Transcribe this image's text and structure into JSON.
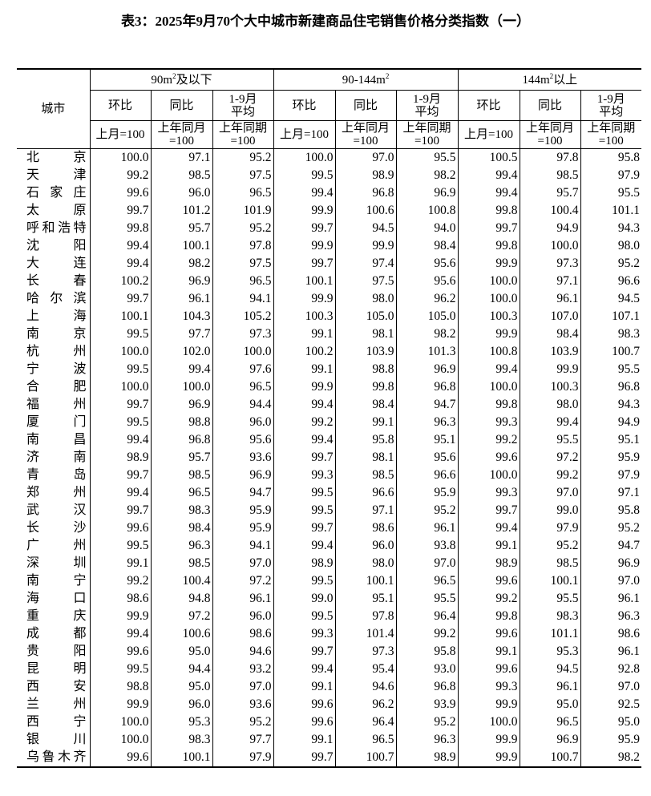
{
  "title": "表3：2025年9月70个大中城市新建商品住宅销售价格分类指数（一）",
  "header": {
    "city": "城市",
    "groups": [
      {
        "base": "90m",
        "sup": "2",
        "suffix": "及以下"
      },
      {
        "base": "90-144m",
        "sup": "2",
        "suffix": ""
      },
      {
        "base": "144m",
        "sup": "2",
        "suffix": "以上"
      }
    ],
    "metrics": [
      {
        "line1": "环比",
        "line2": "",
        "base1": "上月=100",
        "base2": ""
      },
      {
        "line1": "同比",
        "line2": "",
        "base1": "上年同月",
        "base2": "=100"
      },
      {
        "line1": "1-9月",
        "line2": "平均",
        "base1": "上年同期",
        "base2": "=100"
      }
    ]
  },
  "rows": [
    {
      "city": "北京",
      "v": [
        "100.0",
        "97.1",
        "95.2",
        "100.0",
        "97.0",
        "95.5",
        "100.5",
        "97.8",
        "95.8"
      ]
    },
    {
      "city": "天津",
      "v": [
        "99.2",
        "98.5",
        "97.5",
        "99.5",
        "98.9",
        "98.2",
        "99.4",
        "98.5",
        "97.9"
      ]
    },
    {
      "city": "石家庄",
      "v": [
        "99.6",
        "96.0",
        "96.5",
        "99.4",
        "96.8",
        "96.9",
        "99.4",
        "95.7",
        "95.5"
      ]
    },
    {
      "city": "太原",
      "v": [
        "99.7",
        "101.2",
        "101.9",
        "99.9",
        "100.6",
        "100.8",
        "99.8",
        "100.4",
        "101.1"
      ]
    },
    {
      "city": "呼和浩特",
      "v": [
        "99.8",
        "95.7",
        "95.2",
        "99.7",
        "94.5",
        "94.0",
        "99.7",
        "94.9",
        "94.3"
      ]
    },
    {
      "city": "沈阳",
      "v": [
        "99.4",
        "100.1",
        "97.8",
        "99.9",
        "99.9",
        "98.4",
        "99.8",
        "100.0",
        "98.0"
      ]
    },
    {
      "city": "大连",
      "v": [
        "99.4",
        "98.2",
        "97.5",
        "99.7",
        "97.4",
        "95.6",
        "99.9",
        "97.3",
        "95.2"
      ]
    },
    {
      "city": "长春",
      "v": [
        "100.2",
        "96.9",
        "96.5",
        "100.1",
        "97.5",
        "95.6",
        "100.0",
        "97.1",
        "96.6"
      ]
    },
    {
      "city": "哈尔滨",
      "v": [
        "99.7",
        "96.1",
        "94.1",
        "99.9",
        "98.0",
        "96.2",
        "100.0",
        "96.1",
        "94.5"
      ]
    },
    {
      "city": "上海",
      "v": [
        "100.1",
        "104.3",
        "105.2",
        "100.3",
        "105.0",
        "105.0",
        "100.3",
        "107.0",
        "107.1"
      ]
    },
    {
      "city": "南京",
      "v": [
        "99.5",
        "97.7",
        "97.3",
        "99.1",
        "98.1",
        "98.2",
        "99.9",
        "98.4",
        "98.3"
      ]
    },
    {
      "city": "杭州",
      "v": [
        "100.0",
        "102.0",
        "100.0",
        "100.2",
        "103.9",
        "101.3",
        "100.8",
        "103.9",
        "100.7"
      ]
    },
    {
      "city": "宁波",
      "v": [
        "99.5",
        "99.4",
        "97.6",
        "99.1",
        "98.8",
        "96.9",
        "99.4",
        "99.9",
        "95.5"
      ]
    },
    {
      "city": "合肥",
      "v": [
        "100.0",
        "100.0",
        "96.5",
        "99.9",
        "99.8",
        "96.8",
        "100.0",
        "100.3",
        "96.8"
      ]
    },
    {
      "city": "福州",
      "v": [
        "99.7",
        "96.9",
        "94.4",
        "99.4",
        "98.4",
        "94.7",
        "99.8",
        "98.0",
        "94.3"
      ]
    },
    {
      "city": "厦门",
      "v": [
        "99.5",
        "98.8",
        "96.0",
        "99.2",
        "99.1",
        "96.3",
        "99.3",
        "99.4",
        "94.9"
      ]
    },
    {
      "city": "南昌",
      "v": [
        "99.4",
        "96.8",
        "95.6",
        "99.4",
        "95.8",
        "95.1",
        "99.2",
        "95.5",
        "95.1"
      ]
    },
    {
      "city": "济南",
      "v": [
        "98.9",
        "95.7",
        "93.6",
        "99.7",
        "98.1",
        "95.6",
        "99.6",
        "97.2",
        "95.9"
      ]
    },
    {
      "city": "青岛",
      "v": [
        "99.7",
        "98.5",
        "96.9",
        "99.3",
        "98.5",
        "96.6",
        "100.0",
        "99.2",
        "97.9"
      ]
    },
    {
      "city": "郑州",
      "v": [
        "99.4",
        "96.5",
        "94.7",
        "99.5",
        "96.6",
        "95.9",
        "99.3",
        "97.0",
        "97.1"
      ]
    },
    {
      "city": "武汉",
      "v": [
        "99.7",
        "98.3",
        "95.9",
        "99.5",
        "97.1",
        "95.2",
        "99.7",
        "99.0",
        "95.8"
      ]
    },
    {
      "city": "长沙",
      "v": [
        "99.6",
        "98.4",
        "95.9",
        "99.7",
        "98.6",
        "96.1",
        "99.4",
        "97.9",
        "95.2"
      ]
    },
    {
      "city": "广州",
      "v": [
        "99.5",
        "96.3",
        "94.1",
        "99.4",
        "96.0",
        "93.8",
        "99.1",
        "95.2",
        "94.7"
      ]
    },
    {
      "city": "深圳",
      "v": [
        "99.1",
        "98.5",
        "97.0",
        "98.9",
        "98.0",
        "97.0",
        "98.9",
        "98.5",
        "96.9"
      ]
    },
    {
      "city": "南宁",
      "v": [
        "99.2",
        "100.4",
        "97.2",
        "99.5",
        "100.1",
        "96.5",
        "99.6",
        "100.1",
        "97.0"
      ]
    },
    {
      "city": "海口",
      "v": [
        "98.6",
        "94.8",
        "96.1",
        "99.0",
        "95.1",
        "95.5",
        "99.2",
        "95.5",
        "96.1"
      ]
    },
    {
      "city": "重庆",
      "v": [
        "99.9",
        "97.2",
        "96.0",
        "99.5",
        "97.8",
        "96.4",
        "99.8",
        "98.3",
        "96.3"
      ]
    },
    {
      "city": "成都",
      "v": [
        "99.4",
        "100.6",
        "98.6",
        "99.3",
        "101.4",
        "99.2",
        "99.6",
        "101.1",
        "98.6"
      ]
    },
    {
      "city": "贵阳",
      "v": [
        "99.6",
        "95.0",
        "94.6",
        "99.7",
        "97.3",
        "95.8",
        "99.1",
        "95.3",
        "96.1"
      ]
    },
    {
      "city": "昆明",
      "v": [
        "99.5",
        "94.4",
        "93.2",
        "99.4",
        "95.4",
        "93.0",
        "99.6",
        "94.5",
        "92.8"
      ]
    },
    {
      "city": "西安",
      "v": [
        "98.8",
        "95.0",
        "97.0",
        "99.1",
        "94.6",
        "96.8",
        "99.3",
        "96.1",
        "97.0"
      ]
    },
    {
      "city": "兰州",
      "v": [
        "99.9",
        "96.0",
        "93.6",
        "99.6",
        "96.2",
        "93.9",
        "99.9",
        "95.0",
        "92.5"
      ]
    },
    {
      "city": "西宁",
      "v": [
        "100.0",
        "95.3",
        "95.2",
        "99.6",
        "96.4",
        "95.2",
        "100.0",
        "96.5",
        "95.0"
      ]
    },
    {
      "city": "银川",
      "v": [
        "100.0",
        "98.3",
        "97.7",
        "99.1",
        "96.5",
        "96.3",
        "99.9",
        "96.9",
        "95.9"
      ]
    },
    {
      "city": "乌鲁木齐",
      "v": [
        "99.6",
        "100.1",
        "97.9",
        "99.7",
        "100.7",
        "98.9",
        "99.9",
        "100.7",
        "98.2"
      ]
    }
  ]
}
